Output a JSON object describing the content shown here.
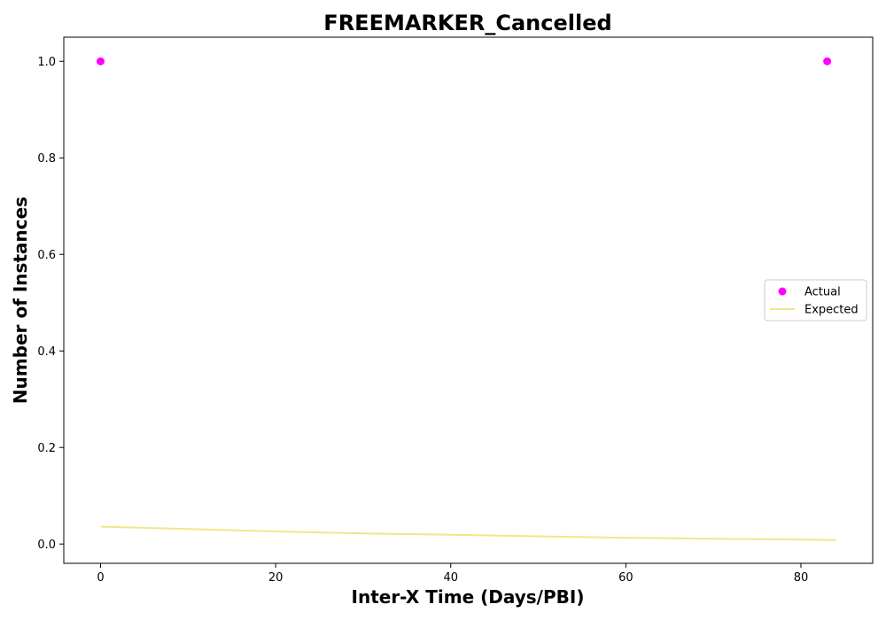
{
  "chart_data": {
    "type": "scatter",
    "title": "FREEMARKER_Cancelled",
    "xlabel": "Inter-X Time (Days/PBI)",
    "ylabel": "Number of Instances",
    "xlim": [
      -4.2,
      88.2
    ],
    "ylim": [
      -0.04,
      1.05
    ],
    "x_ticks": [
      0,
      20,
      40,
      60,
      80
    ],
    "y_ticks": [
      0.0,
      0.2,
      0.4,
      0.6,
      0.8,
      1.0
    ],
    "x_tick_labels": [
      "0",
      "20",
      "40",
      "60",
      "80"
    ],
    "y_tick_labels": [
      "0.0",
      "0.2",
      "0.4",
      "0.6",
      "0.8",
      "1.0"
    ],
    "grid": false,
    "legend_position": "center-right",
    "series": [
      {
        "name": "Actual",
        "kind": "scatter",
        "color": "#ff00ff",
        "x": [
          0,
          83
        ],
        "y": [
          1.0,
          1.0
        ]
      },
      {
        "name": "Expected",
        "kind": "line",
        "color": "#f0e68c",
        "x": [
          0,
          10,
          20,
          30,
          40,
          50,
          60,
          70,
          80,
          84
        ],
        "y": [
          0.036,
          0.031,
          0.026,
          0.022,
          0.019,
          0.016,
          0.013,
          0.011,
          0.009,
          0.008
        ]
      }
    ]
  }
}
